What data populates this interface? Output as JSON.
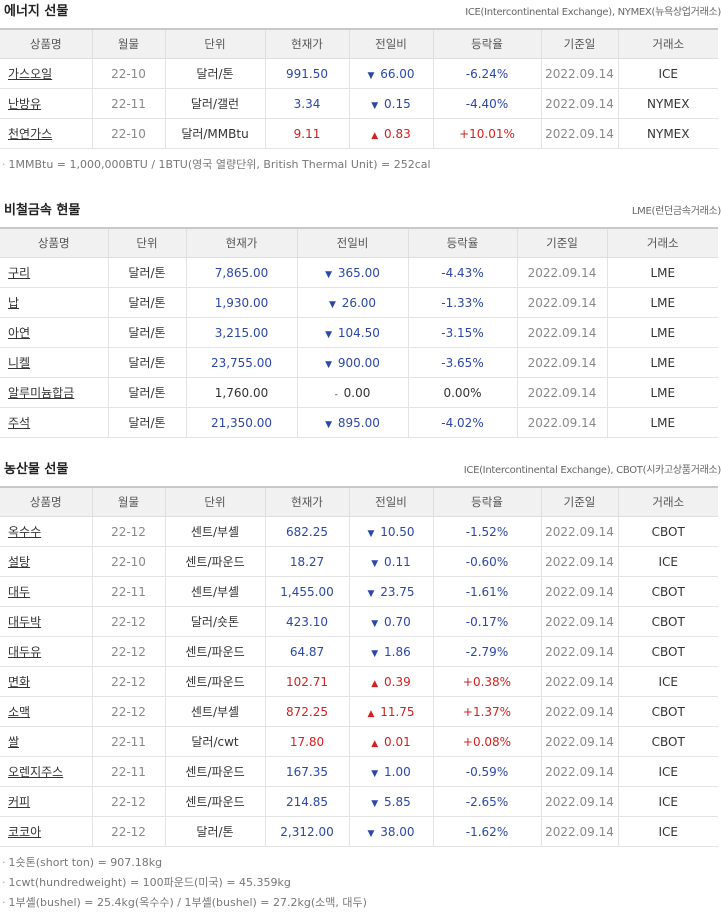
{
  "energy": {
    "title": "에너지 선물",
    "source": "ICE(Intercontinental Exchange), NYMEX(뉴욕상업거래소)",
    "headers": [
      "상품명",
      "월물",
      "단위",
      "현재가",
      "전일비",
      "등락율",
      "기준일",
      "거래소"
    ],
    "rows": [
      {
        "name": "가스오일",
        "month": "22-10",
        "unit": "달러/톤",
        "price": "991.50",
        "dir": "down",
        "change": "66.00",
        "rate": "-6.24%",
        "date": "2022.09.14",
        "exchange": "ICE"
      },
      {
        "name": "난방유",
        "month": "22-11",
        "unit": "달러/갤런",
        "price": "3.34",
        "dir": "down",
        "change": "0.15",
        "rate": "-4.40%",
        "date": "2022.09.14",
        "exchange": "NYMEX"
      },
      {
        "name": "천연가스",
        "month": "22-10",
        "unit": "달러/MMBtu",
        "price": "9.11",
        "dir": "up",
        "change": "0.83",
        "rate": "+10.01%",
        "date": "2022.09.14",
        "exchange": "NYMEX"
      }
    ],
    "notes": [
      "1MMBtu = 1,000,000BTU / 1BTU(영국 열량단위, British Thermal Unit) = 252cal"
    ]
  },
  "metals": {
    "title": "비철금속 현물",
    "source": "LME(런던금속거래소)",
    "headers": [
      "상품명",
      "단위",
      "현재가",
      "전일비",
      "등락율",
      "기준일",
      "거래소"
    ],
    "rows": [
      {
        "name": "구리",
        "unit": "달러/톤",
        "price": "7,865.00",
        "dir": "down",
        "change": "365.00",
        "rate": "-4.43%",
        "date": "2022.09.14",
        "exchange": "LME"
      },
      {
        "name": "납",
        "unit": "달러/톤",
        "price": "1,930.00",
        "dir": "down",
        "change": "26.00",
        "rate": "-1.33%",
        "date": "2022.09.14",
        "exchange": "LME"
      },
      {
        "name": "아연",
        "unit": "달러/톤",
        "price": "3,215.00",
        "dir": "down",
        "change": "104.50",
        "rate": "-3.15%",
        "date": "2022.09.14",
        "exchange": "LME"
      },
      {
        "name": "니켈",
        "unit": "달러/톤",
        "price": "23,755.00",
        "dir": "down",
        "change": "900.00",
        "rate": "-3.65%",
        "date": "2022.09.14",
        "exchange": "LME"
      },
      {
        "name": "알루미늄합금",
        "unit": "달러/톤",
        "price": "1,760.00",
        "dir": "flat",
        "change": "0.00",
        "rate": "0.00%",
        "date": "2022.09.14",
        "exchange": "LME"
      },
      {
        "name": "주석",
        "unit": "달러/톤",
        "price": "21,350.00",
        "dir": "down",
        "change": "895.00",
        "rate": "-4.02%",
        "date": "2022.09.14",
        "exchange": "LME"
      }
    ]
  },
  "agri": {
    "title": "농산물 선물",
    "source": "ICE(Intercontinental Exchange), CBOT(시카고상품거래소)",
    "headers": [
      "상품명",
      "월물",
      "단위",
      "현재가",
      "전일비",
      "등락율",
      "기준일",
      "거래소"
    ],
    "rows": [
      {
        "name": "옥수수",
        "month": "22-12",
        "unit": "센트/부셸",
        "price": "682.25",
        "dir": "down",
        "change": "10.50",
        "rate": "-1.52%",
        "date": "2022.09.14",
        "exchange": "CBOT"
      },
      {
        "name": "설탕",
        "month": "22-10",
        "unit": "센트/파운드",
        "price": "18.27",
        "dir": "down",
        "change": "0.11",
        "rate": "-0.60%",
        "date": "2022.09.14",
        "exchange": "ICE"
      },
      {
        "name": "대두",
        "month": "22-11",
        "unit": "센트/부셸",
        "price": "1,455.00",
        "dir": "down",
        "change": "23.75",
        "rate": "-1.61%",
        "date": "2022.09.14",
        "exchange": "CBOT"
      },
      {
        "name": "대두박",
        "month": "22-12",
        "unit": "달러/숏톤",
        "price": "423.10",
        "dir": "down",
        "change": "0.70",
        "rate": "-0.17%",
        "date": "2022.09.14",
        "exchange": "CBOT"
      },
      {
        "name": "대두유",
        "month": "22-12",
        "unit": "센트/파운드",
        "price": "64.87",
        "dir": "down",
        "change": "1.86",
        "rate": "-2.79%",
        "date": "2022.09.14",
        "exchange": "CBOT"
      },
      {
        "name": "면화",
        "month": "22-12",
        "unit": "센트/파운드",
        "price": "102.71",
        "dir": "up",
        "change": "0.39",
        "rate": "+0.38%",
        "date": "2022.09.14",
        "exchange": "ICE"
      },
      {
        "name": "소맥",
        "month": "22-12",
        "unit": "센트/부셸",
        "price": "872.25",
        "dir": "up",
        "change": "11.75",
        "rate": "+1.37%",
        "date": "2022.09.14",
        "exchange": "CBOT"
      },
      {
        "name": "쌀",
        "month": "22-11",
        "unit": "달러/cwt",
        "price": "17.80",
        "dir": "up",
        "change": "0.01",
        "rate": "+0.08%",
        "date": "2022.09.14",
        "exchange": "CBOT"
      },
      {
        "name": "오렌지주스",
        "month": "22-11",
        "unit": "센트/파운드",
        "price": "167.35",
        "dir": "down",
        "change": "1.00",
        "rate": "-0.59%",
        "date": "2022.09.14",
        "exchange": "ICE"
      },
      {
        "name": "커피",
        "month": "22-12",
        "unit": "센트/파운드",
        "price": "214.85",
        "dir": "down",
        "change": "5.85",
        "rate": "-2.65%",
        "date": "2022.09.14",
        "exchange": "ICE"
      },
      {
        "name": "코코아",
        "month": "22-12",
        "unit": "달러/톤",
        "price": "2,312.00",
        "dir": "down",
        "change": "38.00",
        "rate": "-1.62%",
        "date": "2022.09.14",
        "exchange": "ICE"
      }
    ],
    "notes": [
      "1숏톤(short ton) = 907.18kg",
      "1cwt(hundredweight) = 100파운드(미국) = 45.359kg",
      "1부셸(bushel) = 25.4kg(옥수수) / 1부셸(bushel) = 27.2kg(소맥, 대두)"
    ]
  },
  "colors": {
    "down": "#2c47a8",
    "up": "#d62020",
    "header_bg": "#f1f1f1"
  },
  "icons": {
    "down": "triangle-down-icon",
    "up": "triangle-up-icon",
    "flat": "dash-icon"
  }
}
